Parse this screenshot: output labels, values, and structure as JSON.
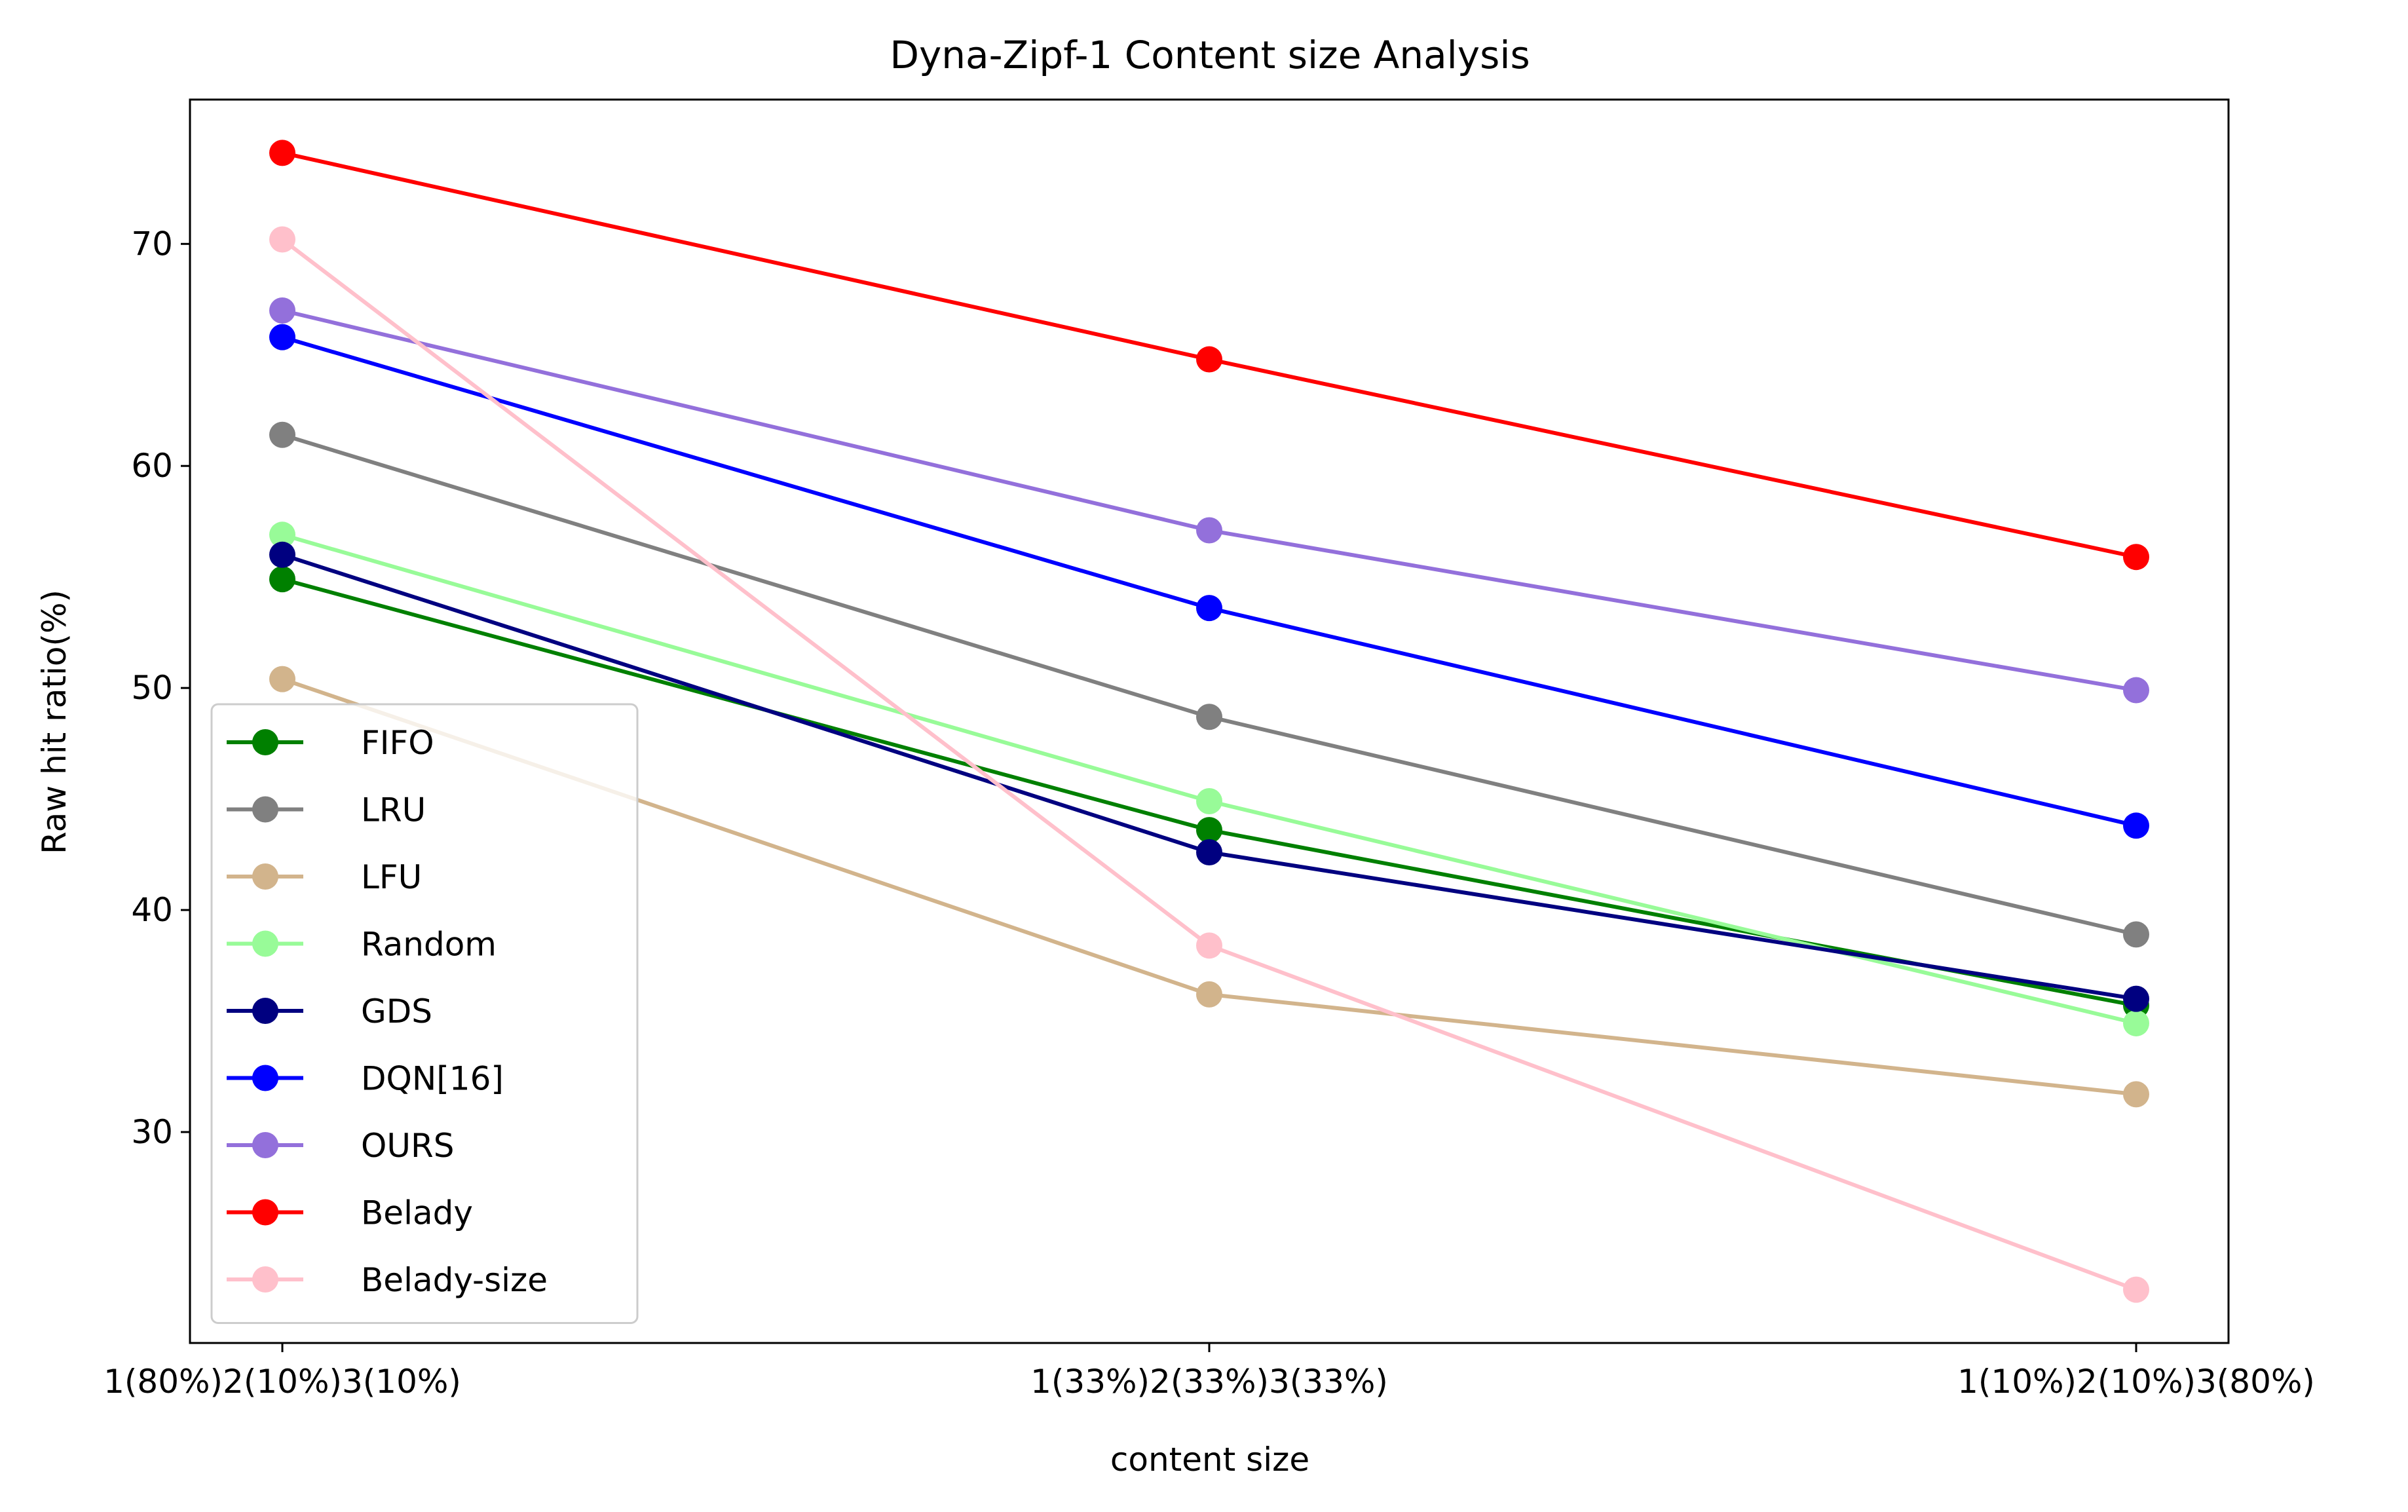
{
  "chart_data": {
    "type": "line",
    "title": "Dyna-Zipf-1 Content size Analysis",
    "xlabel": "content size",
    "ylabel": "Raw hit ratio(%)",
    "categories": [
      "1(80%)2(10%)3(10%)",
      "1(33%)2(33%)3(33%)",
      "1(10%)2(10%)3(80%)"
    ],
    "ylim": [
      20.5,
      76.5
    ],
    "yticks": [
      30,
      40,
      50,
      60,
      70
    ],
    "grid": false,
    "legend_position": "lower-left",
    "series": [
      {
        "name": "FIFO",
        "color": "#008000",
        "values": [
          54.9,
          43.6,
          35.7
        ]
      },
      {
        "name": "LRU",
        "color": "#808080",
        "values": [
          61.4,
          48.7,
          38.9
        ]
      },
      {
        "name": "LFU",
        "color": "#d2b48c",
        "values": [
          50.4,
          36.2,
          31.7
        ]
      },
      {
        "name": "Random",
        "color": "#98fb98",
        "values": [
          56.9,
          44.9,
          34.9
        ]
      },
      {
        "name": "GDS",
        "color": "#000080",
        "values": [
          56.0,
          42.6,
          36.0
        ]
      },
      {
        "name": "DQN[16]",
        "color": "#0000ff",
        "values": [
          65.8,
          53.6,
          43.8
        ]
      },
      {
        "name": "OURS",
        "color": "#9370db",
        "values": [
          67.0,
          57.1,
          49.9
        ]
      },
      {
        "name": "Belady",
        "color": "#ff0000",
        "values": [
          74.1,
          64.8,
          55.9
        ]
      },
      {
        "name": "Belady-size",
        "color": "#ffc0cb",
        "values": [
          70.2,
          38.4,
          22.9
        ]
      }
    ]
  }
}
